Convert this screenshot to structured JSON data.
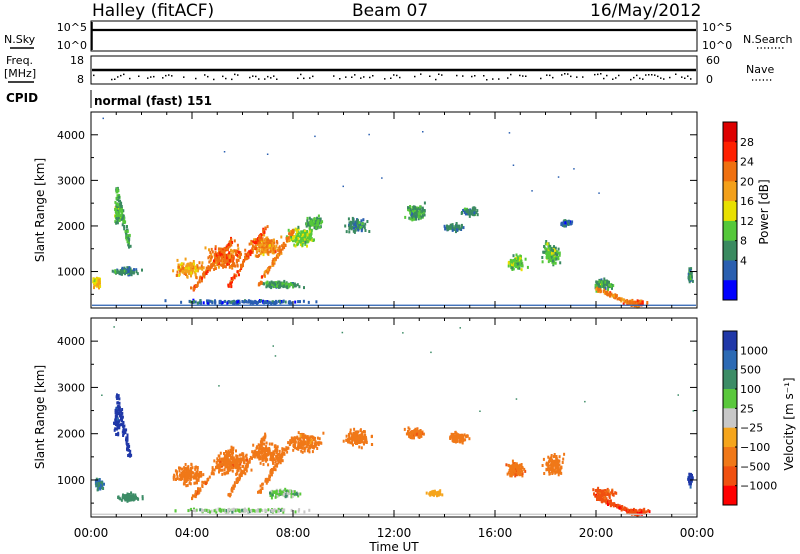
{
  "header": {
    "station": "Halley (fitACF)",
    "beam": "Beam 07",
    "date": "16/May/2012"
  },
  "top_panels": {
    "nsky_label": "N.Sky",
    "nsearch_label": "N.Search",
    "nsky_ticks": [
      "10^5",
      "10^0"
    ],
    "nsearch_ticks": [
      "10^5",
      "10^0"
    ],
    "freq_label": "Freq.",
    "freq_unit": "[MHz]",
    "freq_ticks": [
      "18",
      "8"
    ],
    "nave_label": "Nave",
    "nave_ticks": [
      "60",
      "0"
    ],
    "cpid_label": "CPID",
    "cpid_value": "normal (fast) 151"
  },
  "colors": {
    "power": [
      "#0000ff",
      "#2a5fb0",
      "#3a8a60",
      "#55c83a",
      "#e8e000",
      "#f3a01a",
      "#ef7010",
      "#ff2000",
      "#dd0000"
    ],
    "velocity": [
      "#2038a8",
      "#2c6ab4",
      "#3c8c66",
      "#5ac83c",
      "#c8c8c8",
      "#f5a51c",
      "#f07818",
      "#f05010",
      "#ff0000"
    ]
  },
  "chart_data": [
    {
      "type": "heatmap",
      "name": "power",
      "ylabel": "Slant Range [km]",
      "xlabel": "",
      "ylim": [
        200,
        4500
      ],
      "xlim": [
        0,
        24
      ],
      "ytick_labels": [
        "1000",
        "2000",
        "3000",
        "4000"
      ],
      "colorbar": {
        "label": "Power [dB]",
        "tick_labels": [
          "28",
          "24",
          "20",
          "16",
          "12",
          "8",
          "4"
        ]
      },
      "blobs": [
        {
          "t": 0.2,
          "r": 750,
          "dt": 0.35,
          "dr": 260,
          "v": 20
        },
        {
          "t": 1.0,
          "r": 2300,
          "dt": 0.25,
          "dr": 700,
          "v": 13
        },
        {
          "t": 1.4,
          "r": 1000,
          "dt": 1.2,
          "dr": 180,
          "v": 9
        },
        {
          "t": 3.8,
          "r": 1050,
          "dt": 1.3,
          "dr": 400,
          "v": 22
        },
        {
          "t": 5.3,
          "r": 1300,
          "dt": 1.6,
          "dr": 550,
          "v": 26
        },
        {
          "t": 6.8,
          "r": 1550,
          "dt": 1.4,
          "dr": 500,
          "v": 24
        },
        {
          "t": 8.3,
          "r": 1750,
          "dt": 1.2,
          "dr": 450,
          "v": 15
        },
        {
          "t": 8.8,
          "r": 2050,
          "dt": 0.8,
          "dr": 300,
          "v": 12
        },
        {
          "t": 7.5,
          "r": 700,
          "dt": 1.7,
          "dr": 180,
          "v": 11
        },
        {
          "t": 10.5,
          "r": 2000,
          "dt": 0.9,
          "dr": 350,
          "v": 9
        },
        {
          "t": 12.8,
          "r": 2300,
          "dt": 0.9,
          "dr": 400,
          "v": 11
        },
        {
          "t": 14.3,
          "r": 1950,
          "dt": 0.8,
          "dr": 180,
          "v": 10
        },
        {
          "t": 15.0,
          "r": 2300,
          "dt": 0.7,
          "dr": 200,
          "v": 9
        },
        {
          "t": 16.8,
          "r": 1200,
          "dt": 0.8,
          "dr": 380,
          "v": 14
        },
        {
          "t": 18.2,
          "r": 1400,
          "dt": 0.8,
          "dr": 520,
          "v": 13
        },
        {
          "t": 18.8,
          "r": 2050,
          "dt": 0.5,
          "dr": 150,
          "v": 7
        },
        {
          "t": 20.2,
          "r": 700,
          "dt": 1.0,
          "dr": 260,
          "v": 11
        },
        {
          "t": 21.5,
          "r": 300,
          "dt": 1.0,
          "dr": 120,
          "v": 27
        },
        {
          "t": 23.7,
          "r": 900,
          "dt": 0.2,
          "dr": 350,
          "v": 9
        },
        {
          "t": 6.0,
          "r": 320,
          "dt": 6.0,
          "dr": 90,
          "v": 6
        }
      ],
      "streaks": [
        {
          "t0": 4.0,
          "r0": 600,
          "t1": 5.6,
          "r1": 1700,
          "v": 27
        },
        {
          "t0": 5.4,
          "r0": 650,
          "t1": 6.9,
          "r1": 1950,
          "v": 28
        },
        {
          "t0": 6.6,
          "r0": 700,
          "t1": 8.0,
          "r1": 1900,
          "v": 25
        },
        {
          "t0": 1.0,
          "r0": 2800,
          "t1": 1.5,
          "r1": 1500,
          "v": 12
        },
        {
          "t0": 20.0,
          "r0": 600,
          "t1": 21.6,
          "r1": 250,
          "v": 25
        }
      ]
    },
    {
      "type": "heatmap",
      "name": "velocity",
      "ylabel": "Slant Range [km]",
      "xlabel": "Time UT",
      "ylim": [
        200,
        4500
      ],
      "xlim": [
        0,
        24
      ],
      "xtick_labels": [
        "00:00",
        "04:00",
        "08:00",
        "12:00",
        "16:00",
        "20:00",
        "00:00"
      ],
      "ytick_labels": [
        "1000",
        "2000",
        "3000",
        "4000"
      ],
      "colorbar": {
        "label": "Velocity [m s⁻¹]",
        "tick_labels": [
          "1000",
          "500",
          "100",
          "25",
          "−25",
          "−100",
          "−500",
          "−1000"
        ]
      },
      "blobs": [
        {
          "t": 0.3,
          "r": 900,
          "dt": 0.35,
          "dr": 300,
          "v": 100
        },
        {
          "t": 1.0,
          "r": 2300,
          "dt": 0.25,
          "dr": 700,
          "v": 700
        },
        {
          "t": 1.5,
          "r": 600,
          "dt": 1.0,
          "dr": 200,
          "v": 60
        },
        {
          "t": 3.8,
          "r": 1100,
          "dt": 1.3,
          "dr": 450,
          "v": -200
        },
        {
          "t": 5.5,
          "r": 1350,
          "dt": 1.6,
          "dr": 550,
          "v": -350
        },
        {
          "t": 7.0,
          "r": 1550,
          "dt": 1.4,
          "dr": 500,
          "v": -300
        },
        {
          "t": 8.5,
          "r": 1800,
          "dt": 1.2,
          "dr": 450,
          "v": -150
        },
        {
          "t": 7.5,
          "r": 700,
          "dt": 1.7,
          "dr": 180,
          "v": 10
        },
        {
          "t": 10.5,
          "r": 1900,
          "dt": 1.2,
          "dr": 400,
          "v": -200
        },
        {
          "t": 12.8,
          "r": 2000,
          "dt": 0.8,
          "dr": 250,
          "v": -400
        },
        {
          "t": 14.5,
          "r": 1900,
          "dt": 0.9,
          "dr": 250,
          "v": -300
        },
        {
          "t": 13.6,
          "r": 700,
          "dt": 0.8,
          "dr": 120,
          "v": -60
        },
        {
          "t": 16.8,
          "r": 1200,
          "dt": 0.8,
          "dr": 380,
          "v": -400
        },
        {
          "t": 18.3,
          "r": 1300,
          "dt": 0.8,
          "dr": 520,
          "v": -300
        },
        {
          "t": 20.3,
          "r": 700,
          "dt": 1.0,
          "dr": 260,
          "v": -600
        },
        {
          "t": 21.6,
          "r": 300,
          "dt": 1.0,
          "dr": 120,
          "v": -800
        },
        {
          "t": 23.7,
          "r": 1000,
          "dt": 0.2,
          "dr": 350,
          "v": 600
        },
        {
          "t": 6.0,
          "r": 330,
          "dt": 6.0,
          "dr": 90,
          "v": 5
        }
      ],
      "streaks": [
        {
          "t0": 4.0,
          "r0": 600,
          "t1": 5.6,
          "r1": 1700,
          "v": -400
        },
        {
          "t0": 5.4,
          "r0": 650,
          "t1": 6.9,
          "r1": 1950,
          "v": -350
        },
        {
          "t0": 6.6,
          "r0": 700,
          "t1": 8.0,
          "r1": 1900,
          "v": -300
        },
        {
          "t0": 1.0,
          "r0": 2800,
          "t1": 1.5,
          "r1": 1500,
          "v": 800
        },
        {
          "t0": 20.0,
          "r0": 600,
          "t1": 21.6,
          "r1": 250,
          "v": -700
        }
      ]
    }
  ]
}
